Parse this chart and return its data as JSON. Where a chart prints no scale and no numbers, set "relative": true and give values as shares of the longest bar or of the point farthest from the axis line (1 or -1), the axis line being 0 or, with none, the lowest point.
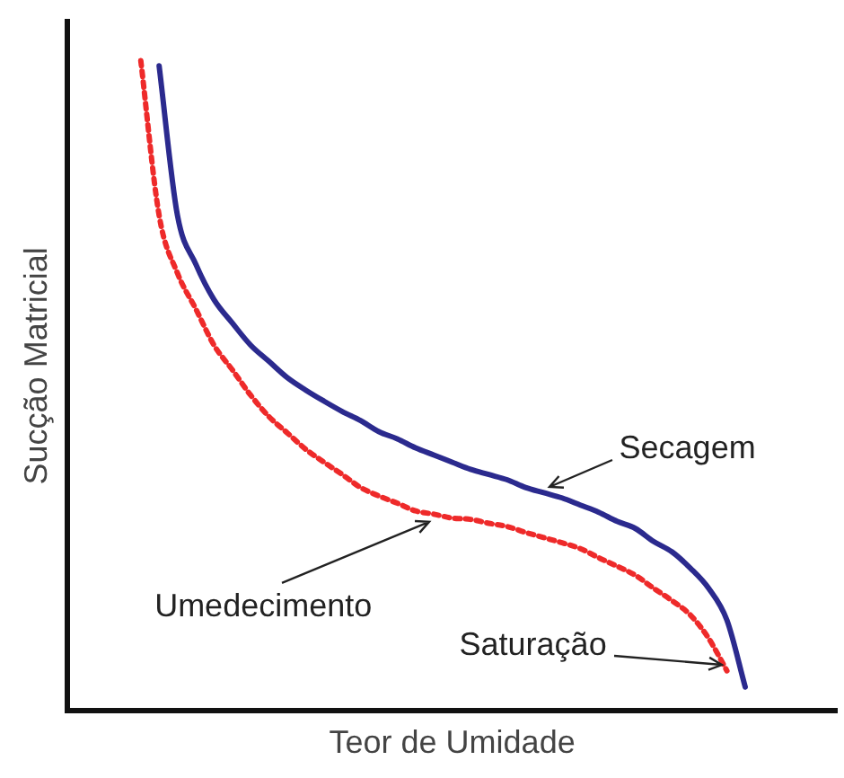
{
  "chart_data": {
    "type": "line",
    "relative": true,
    "xlabel": "Teor de Umidade",
    "ylabel": "Sucção Matricial",
    "grid": false,
    "legend": false,
    "tick_labels": false,
    "marker": "none",
    "categories": [
      null,
      null,
      null,
      null,
      null,
      null,
      null,
      null,
      null,
      null,
      null,
      null,
      null,
      null,
      null,
      null,
      null,
      null,
      null,
      null,
      null,
      null,
      null,
      null,
      null,
      null,
      null,
      null,
      null,
      null,
      null,
      null,
      null,
      null,
      null,
      null,
      null,
      null,
      null,
      null,
      null,
      null,
      null
    ],
    "series": [
      {
        "color": "#2b2a8e",
        "line_style": "solid",
        "values": [
          null,
          null,
          null,
          null,
          null,
          0.992,
          0.762,
          0.687,
          0.632,
          0.596,
          0.562,
          0.537,
          0.512,
          0.493,
          0.476,
          0.46,
          0.446,
          0.429,
          0.418,
          0.404,
          0.393,
          0.382,
          0.371,
          0.363,
          0.355,
          0.343,
          0.335,
          0.327,
          0.316,
          0.305,
          0.291,
          0.28,
          0.26,
          0.244,
          0.219,
          0.188,
          0.139,
          0.036,
          null,
          null,
          null,
          null,
          null
        ]
      },
      {
        "color": "#ee2a2a",
        "line_style": "dotted",
        "values": [
          null,
          null,
          null,
          null,
          1,
          0.762,
          0.673,
          0.618,
          0.562,
          0.524,
          0.485,
          0.452,
          0.427,
          0.402,
          0.382,
          0.363,
          0.343,
          0.33,
          0.319,
          0.307,
          0.302,
          0.296,
          0.294,
          0.288,
          0.283,
          0.274,
          0.266,
          0.258,
          0.249,
          0.235,
          0.222,
          0.208,
          0.188,
          0.169,
          0.147,
          0.111,
          0.061,
          null,
          null,
          null,
          null,
          null,
          null
        ]
      }
    ],
    "annotations": [
      "Secagem",
      "Umedecimento",
      "Saturação"
    ]
  }
}
